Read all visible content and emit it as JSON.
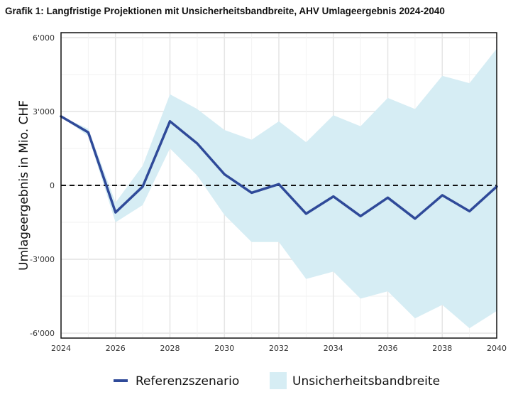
{
  "chart_data": {
    "type": "line",
    "title": "Grafik 1: Langfristige Projektionen mit Unsicherheitsbandbreite, AHV Umlageergebnis 2024-2040",
    "xlabel": "",
    "ylabel": "Umlageergebnis in Mio. CHF",
    "x": [
      2024,
      2025,
      2026,
      2027,
      2028,
      2029,
      2030,
      2031,
      2032,
      2033,
      2034,
      2035,
      2036,
      2037,
      2038,
      2039,
      2040
    ],
    "xlim": [
      2024,
      2040
    ],
    "ylim": [
      -6200,
      6200
    ],
    "x_ticks": [
      2024,
      2026,
      2028,
      2030,
      2032,
      2034,
      2036,
      2038,
      2040
    ],
    "x_tick_labels": [
      "2024",
      "2026",
      "2028",
      "2030",
      "2032",
      "2034",
      "2036",
      "2038",
      "2040"
    ],
    "y_ticks": [
      -6000,
      -3000,
      0,
      3000,
      6000
    ],
    "y_tick_labels": [
      "-6'000",
      "-3'000",
      "0",
      "3'000",
      "6'000"
    ],
    "grid": true,
    "reference_line": {
      "y": 0,
      "style": "dashed",
      "color": "#111111"
    },
    "legend_position": "bottom",
    "series": [
      {
        "name": "Referenzszenario",
        "kind": "line",
        "color": "#2f4a99",
        "values": [
          2800,
          2150,
          -1100,
          -50,
          2600,
          1700,
          450,
          -300,
          50,
          -1150,
          -450,
          -1250,
          -500,
          -1350,
          -400,
          -1050,
          -50
        ]
      },
      {
        "name": "Unsicherheitsbandbreite",
        "kind": "band",
        "color": "#d6edf4",
        "upper": [
          2800,
          2300,
          -700,
          800,
          3700,
          3100,
          2250,
          1850,
          2600,
          1750,
          2850,
          2400,
          3550,
          3100,
          4450,
          4150,
          5550
        ],
        "lower": [
          2800,
          2000,
          -1500,
          -800,
          1500,
          400,
          -1200,
          -2300,
          -2300,
          -3800,
          -3500,
          -4600,
          -4300,
          -5400,
          -4850,
          -5800,
          -5100
        ]
      }
    ]
  }
}
